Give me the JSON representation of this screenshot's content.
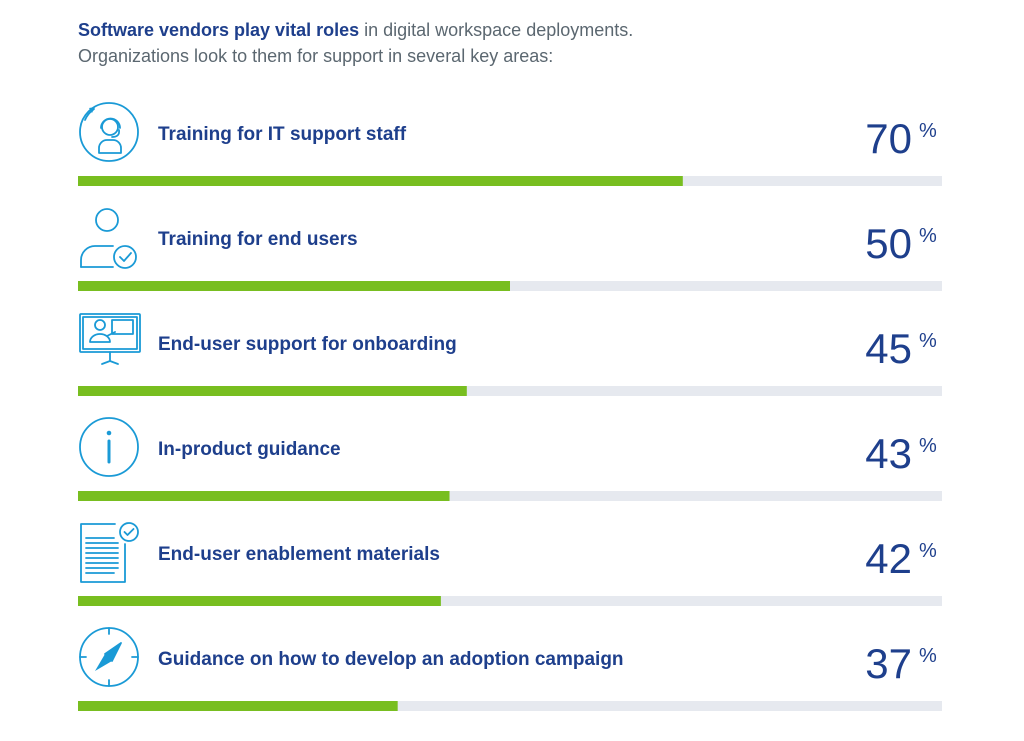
{
  "intro": {
    "bold": "Software vendors play vital roles",
    "rest": " in digital workspace deployments.",
    "line2": "Organizations look to them for support in several key areas:"
  },
  "colors": {
    "bar": "#78be20",
    "track": "#e6e9ef",
    "text": "#1e3f8c",
    "icon": "#1a9ad6"
  },
  "chart_data": {
    "type": "bar",
    "orientation": "horizontal",
    "unit": "%",
    "xlim": [
      0,
      100
    ],
    "categories": [
      "Training for IT support staff",
      "Training for end users",
      "End-user support for onboarding",
      "In-product guidance",
      "End-user enablement materials",
      "Guidance on how to develop an adoption campaign"
    ],
    "values": [
      70,
      50,
      45,
      43,
      42,
      37
    ],
    "icons": [
      "headset-agent-icon",
      "user-check-icon",
      "monitor-presentation-icon",
      "info-icon",
      "document-check-icon",
      "compass-icon"
    ]
  }
}
